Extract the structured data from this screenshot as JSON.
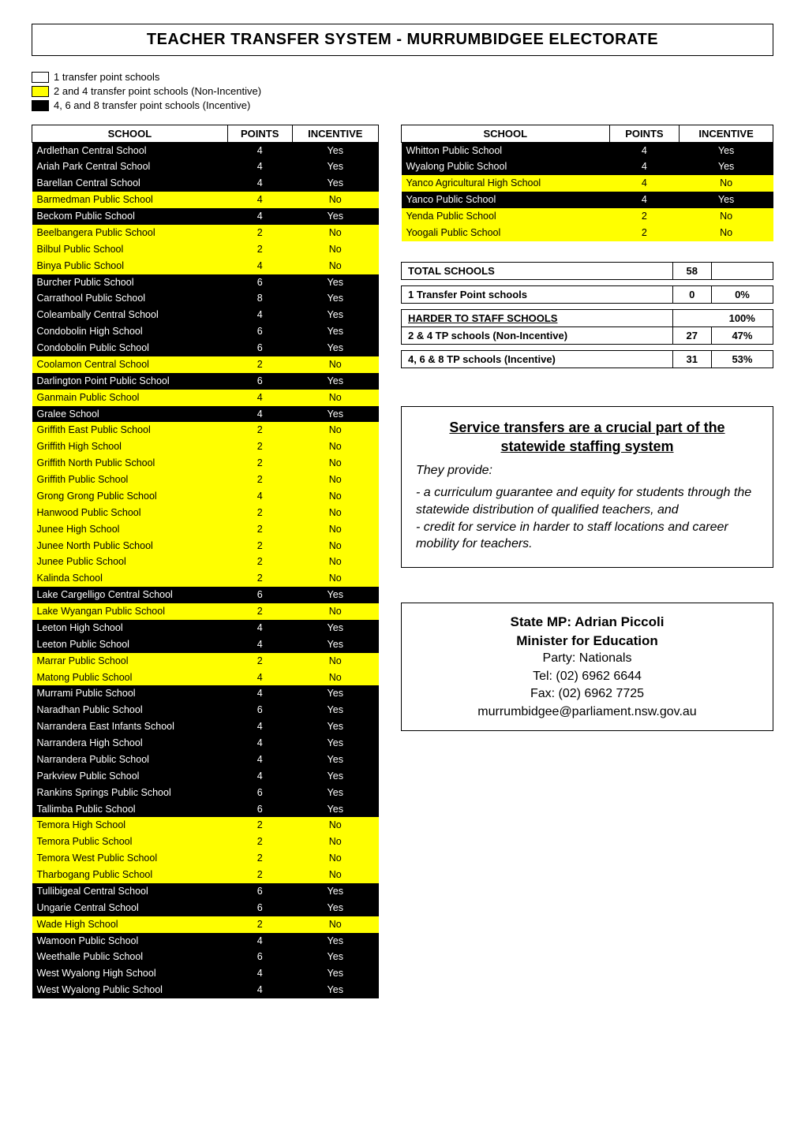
{
  "title": "TEACHER TRANSFER SYSTEM - MURRUMBIDGEE ELECTORATE",
  "legend": [
    {
      "swatch": "#ffffff",
      "label": "1 transfer point schools"
    },
    {
      "swatch": "#ffff00",
      "label": "2 and 4 transfer point schools (Non-Incentive)"
    },
    {
      "swatch": "#000000",
      "label": "4, 6 and 8 transfer point schools (Incentive)"
    }
  ],
  "table_headers": {
    "school": "SCHOOL",
    "points": "POINTS",
    "incentive": "INCENTIVE"
  },
  "colors": {
    "incentive_bg": "#000000",
    "incentive_fg": "#ffffff",
    "nonincentive_bg": "#ffff00",
    "nonincentive_fg": "#000000",
    "onepoint_bg": "#ffffff",
    "onepoint_fg": "#000000",
    "border": "#000000"
  },
  "schools_left": [
    {
      "name": "Ardlethan Central School",
      "points": 4,
      "incentive": "Yes",
      "cls": "incentive"
    },
    {
      "name": "Ariah Park Central School",
      "points": 4,
      "incentive": "Yes",
      "cls": "incentive"
    },
    {
      "name": "Barellan Central School",
      "points": 4,
      "incentive": "Yes",
      "cls": "incentive"
    },
    {
      "name": "Barmedman Public School",
      "points": 4,
      "incentive": "No",
      "cls": "nonincentive"
    },
    {
      "name": "Beckom Public School",
      "points": 4,
      "incentive": "Yes",
      "cls": "incentive"
    },
    {
      "name": "Beelbangera Public School",
      "points": 2,
      "incentive": "No",
      "cls": "nonincentive"
    },
    {
      "name": "Bilbul Public School",
      "points": 2,
      "incentive": "No",
      "cls": "nonincentive"
    },
    {
      "name": "Binya Public School",
      "points": 4,
      "incentive": "No",
      "cls": "nonincentive"
    },
    {
      "name": "Burcher Public School",
      "points": 6,
      "incentive": "Yes",
      "cls": "incentive"
    },
    {
      "name": "Carrathool Public School",
      "points": 8,
      "incentive": "Yes",
      "cls": "incentive"
    },
    {
      "name": "Coleambally Central School",
      "points": 4,
      "incentive": "Yes",
      "cls": "incentive"
    },
    {
      "name": "Condobolin High School",
      "points": 6,
      "incentive": "Yes",
      "cls": "incentive"
    },
    {
      "name": "Condobolin Public School",
      "points": 6,
      "incentive": "Yes",
      "cls": "incentive"
    },
    {
      "name": "Coolamon Central School",
      "points": 2,
      "incentive": "No",
      "cls": "nonincentive"
    },
    {
      "name": "Darlington Point Public School",
      "points": 6,
      "incentive": "Yes",
      "cls": "incentive"
    },
    {
      "name": "Ganmain Public School",
      "points": 4,
      "incentive": "No",
      "cls": "nonincentive"
    },
    {
      "name": "Gralee School",
      "points": 4,
      "incentive": "Yes",
      "cls": "incentive"
    },
    {
      "name": "Griffith East Public School",
      "points": 2,
      "incentive": "No",
      "cls": "nonincentive"
    },
    {
      "name": "Griffith High School",
      "points": 2,
      "incentive": "No",
      "cls": "nonincentive"
    },
    {
      "name": "Griffith North Public School",
      "points": 2,
      "incentive": "No",
      "cls": "nonincentive"
    },
    {
      "name": "Griffith Public School",
      "points": 2,
      "incentive": "No",
      "cls": "nonincentive"
    },
    {
      "name": "Grong Grong Public School",
      "points": 4,
      "incentive": "No",
      "cls": "nonincentive"
    },
    {
      "name": "Hanwood Public School",
      "points": 2,
      "incentive": "No",
      "cls": "nonincentive"
    },
    {
      "name": "Junee High School",
      "points": 2,
      "incentive": "No",
      "cls": "nonincentive"
    },
    {
      "name": "Junee North Public School",
      "points": 2,
      "incentive": "No",
      "cls": "nonincentive"
    },
    {
      "name": "Junee Public School",
      "points": 2,
      "incentive": "No",
      "cls": "nonincentive"
    },
    {
      "name": "Kalinda School",
      "points": 2,
      "incentive": "No",
      "cls": "nonincentive"
    },
    {
      "name": "Lake Cargelligo Central School",
      "points": 6,
      "incentive": "Yes",
      "cls": "incentive"
    },
    {
      "name": "Lake Wyangan Public School",
      "points": 2,
      "incentive": "No",
      "cls": "nonincentive"
    },
    {
      "name": "Leeton High School",
      "points": 4,
      "incentive": "Yes",
      "cls": "incentive"
    },
    {
      "name": "Leeton Public School",
      "points": 4,
      "incentive": "Yes",
      "cls": "incentive"
    },
    {
      "name": "Marrar Public School",
      "points": 2,
      "incentive": "No",
      "cls": "nonincentive"
    },
    {
      "name": "Matong Public School",
      "points": 4,
      "incentive": "No",
      "cls": "nonincentive"
    },
    {
      "name": "Murrami Public School",
      "points": 4,
      "incentive": "Yes",
      "cls": "incentive"
    },
    {
      "name": "Naradhan Public School",
      "points": 6,
      "incentive": "Yes",
      "cls": "incentive"
    },
    {
      "name": "Narrandera East Infants School",
      "points": 4,
      "incentive": "Yes",
      "cls": "incentive"
    },
    {
      "name": "Narrandera High School",
      "points": 4,
      "incentive": "Yes",
      "cls": "incentive"
    },
    {
      "name": "Narrandera Public School",
      "points": 4,
      "incentive": "Yes",
      "cls": "incentive"
    },
    {
      "name": "Parkview Public School",
      "points": 4,
      "incentive": "Yes",
      "cls": "incentive"
    },
    {
      "name": "Rankins Springs Public School",
      "points": 6,
      "incentive": "Yes",
      "cls": "incentive"
    },
    {
      "name": "Tallimba Public School",
      "points": 6,
      "incentive": "Yes",
      "cls": "incentive"
    },
    {
      "name": "Temora High School",
      "points": 2,
      "incentive": "No",
      "cls": "nonincentive"
    },
    {
      "name": "Temora Public School",
      "points": 2,
      "incentive": "No",
      "cls": "nonincentive"
    },
    {
      "name": "Temora West Public School",
      "points": 2,
      "incentive": "No",
      "cls": "nonincentive"
    },
    {
      "name": "Tharbogang Public School",
      "points": 2,
      "incentive": "No",
      "cls": "nonincentive"
    },
    {
      "name": "Tullibigeal Central School",
      "points": 6,
      "incentive": "Yes",
      "cls": "incentive"
    },
    {
      "name": "Ungarie Central School",
      "points": 6,
      "incentive": "Yes",
      "cls": "incentive"
    },
    {
      "name": "Wade High School",
      "points": 2,
      "incentive": "No",
      "cls": "nonincentive"
    },
    {
      "name": "Wamoon Public School",
      "points": 4,
      "incentive": "Yes",
      "cls": "incentive"
    },
    {
      "name": "Weethalle Public School",
      "points": 6,
      "incentive": "Yes",
      "cls": "incentive"
    },
    {
      "name": "West Wyalong High School",
      "points": 4,
      "incentive": "Yes",
      "cls": "incentive"
    },
    {
      "name": "West Wyalong Public School",
      "points": 4,
      "incentive": "Yes",
      "cls": "incentive"
    }
  ],
  "schools_right": [
    {
      "name": "Whitton Public School",
      "points": 4,
      "incentive": "Yes",
      "cls": "incentive"
    },
    {
      "name": "Wyalong Public School",
      "points": 4,
      "incentive": "Yes",
      "cls": "incentive"
    },
    {
      "name": "Yanco Agricultural High School",
      "points": 4,
      "incentive": "No",
      "cls": "nonincentive"
    },
    {
      "name": "Yanco Public School",
      "points": 4,
      "incentive": "Yes",
      "cls": "incentive"
    },
    {
      "name": "Yenda Public School",
      "points": 2,
      "incentive": "No",
      "cls": "nonincentive"
    },
    {
      "name": "Yoogali Public School",
      "points": 2,
      "incentive": "No",
      "cls": "nonincentive"
    }
  ],
  "summary": {
    "total_label": "TOTAL SCHOOLS",
    "total_value": "58",
    "one_tp_label": "1 Transfer Point schools",
    "one_tp_count": "0",
    "one_tp_pct": "0%",
    "harder_label": "HARDER TO STAFF SCHOOLS",
    "harder_pct": "100%",
    "nonincentive_label": "2 & 4 TP schools (Non-Incentive)",
    "nonincentive_count": "27",
    "nonincentive_pct": "47%",
    "incentive_label": "4, 6 & 8 TP schools (Incentive)",
    "incentive_count": "31",
    "incentive_pct": "53%"
  },
  "info": {
    "heading": "Service transfers are a crucial part of the statewide staffing system",
    "provide": "They provide:",
    "body1": "-  a curriculum guarantee and equity for students through the statewide distribution of qualified teachers, and",
    "body2": "- credit for service in harder to staff locations and career mobility for teachers."
  },
  "mp": {
    "line1": "State MP: Adrian Piccoli",
    "line2": "Minister for Education",
    "line3": "Party: Nationals",
    "line4": "Tel: (02) 6962 6644",
    "line5": "Fax: (02) 6962 7725",
    "line6": "murrumbidgee@parliament.nsw.gov.au"
  }
}
